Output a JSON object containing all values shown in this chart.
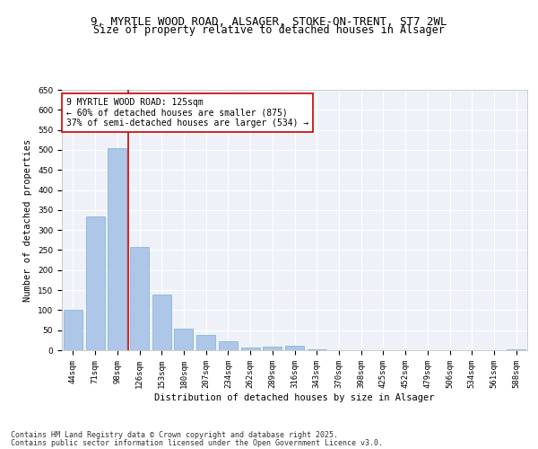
{
  "title_line1": "9, MYRTLE WOOD ROAD, ALSAGER, STOKE-ON-TRENT, ST7 2WL",
  "title_line2": "Size of property relative to detached houses in Alsager",
  "xlabel": "Distribution of detached houses by size in Alsager",
  "ylabel": "Number of detached properties",
  "categories": [
    "44sqm",
    "71sqm",
    "98sqm",
    "126sqm",
    "153sqm",
    "180sqm",
    "207sqm",
    "234sqm",
    "262sqm",
    "289sqm",
    "316sqm",
    "343sqm",
    "370sqm",
    "398sqm",
    "425sqm",
    "452sqm",
    "479sqm",
    "506sqm",
    "534sqm",
    "561sqm",
    "588sqm"
  ],
  "values": [
    100,
    335,
    505,
    258,
    138,
    53,
    39,
    23,
    6,
    10,
    11,
    3,
    0,
    0,
    0,
    0,
    0,
    0,
    0,
    0,
    3
  ],
  "bar_color": "#aec6e8",
  "bar_edge_color": "#7aafd4",
  "vline_color": "#cc0000",
  "vline_x_index": 2.5,
  "annotation_text": "9 MYRTLE WOOD ROAD: 125sqm\n← 60% of detached houses are smaller (875)\n37% of semi-detached houses are larger (534) →",
  "annotation_box_color": "#ffffff",
  "annotation_box_edge_color": "#cc0000",
  "ylim": [
    0,
    650
  ],
  "yticks": [
    0,
    50,
    100,
    150,
    200,
    250,
    300,
    350,
    400,
    450,
    500,
    550,
    600,
    650
  ],
  "background_color": "#eef2f8",
  "grid_color": "#ffffff",
  "fig_background": "#ffffff",
  "footer_line1": "Contains HM Land Registry data © Crown copyright and database right 2025.",
  "footer_line2": "Contains public sector information licensed under the Open Government Licence v3.0.",
  "title_fontsize": 9,
  "subtitle_fontsize": 8.5,
  "axis_label_fontsize": 7.5,
  "tick_fontsize": 6.5,
  "annotation_fontsize": 7,
  "footer_fontsize": 6
}
